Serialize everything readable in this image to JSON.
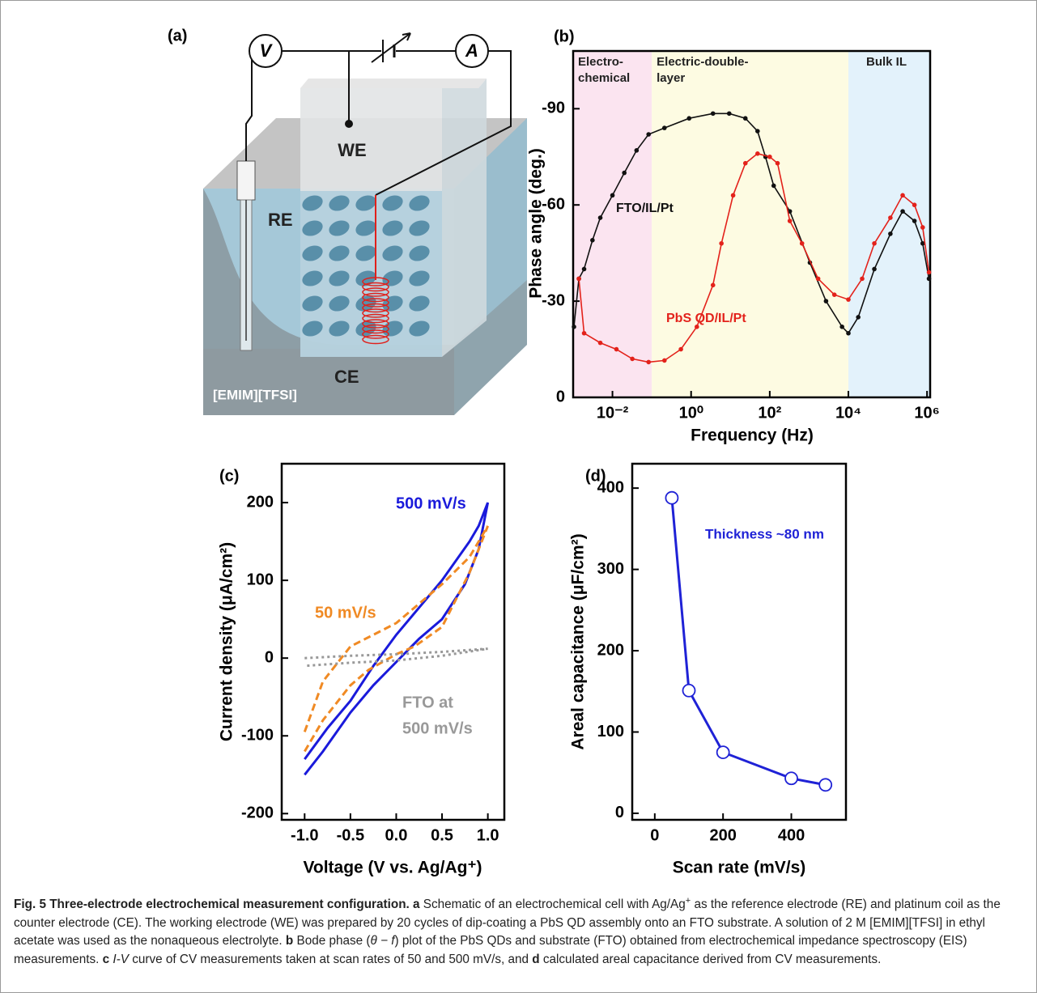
{
  "schematic": {
    "panel_label": "(a)",
    "voltmeter": "V",
    "ammeter": "A",
    "working_electrode": "WE",
    "reference_electrode": "RE",
    "counter_electrode": "CE",
    "electrolyte": "[EMIM][TFSI]"
  },
  "chart_data": [
    {
      "type": "line",
      "panel_label": "(b)",
      "xlabel": "Frequency (Hz)",
      "ylabel": "Phase angle (deg.)",
      "log_x": true,
      "xlim": [
        0.001,
        1200000
      ],
      "ylim": [
        0,
        -108
      ],
      "xticks": [
        {
          "value": 0.01,
          "label": "10⁻²"
        },
        {
          "value": 1,
          "label": "10⁰"
        },
        {
          "value": 100,
          "label": "10²"
        },
        {
          "value": 10000,
          "label": "10⁴"
        },
        {
          "value": 1000000,
          "label": "10⁶"
        }
      ],
      "yticks": [
        0,
        -30,
        -60,
        -90
      ],
      "regions": [
        {
          "name": [
            "Electro-",
            "chemical"
          ],
          "from": 0.001,
          "to": 0.1,
          "color": "#fbe4f0"
        },
        {
          "name": [
            "Electric-double-",
            "layer"
          ],
          "from": 0.1,
          "to": 10000,
          "color": "#fdfbe2"
        },
        {
          "name": [
            "Bulk IL"
          ],
          "from": 10000,
          "to": 1200000,
          "color": "#e3f2fb"
        }
      ],
      "annotations": [
        {
          "text": "FTO/IL/Pt",
          "color": "#111111"
        },
        {
          "text": "PbS QD/IL/Pt",
          "color": "#e3221b"
        }
      ],
      "series": [
        {
          "color": "#111111",
          "marker": "dot",
          "dash": "solid",
          "x": [
            0.00105,
            0.0014,
            0.0019,
            0.0031,
            0.0049,
            0.01,
            0.02,
            0.041,
            0.083,
            0.21,
            0.89,
            3.6,
            9.3,
            24,
            49,
            78,
            126,
            324,
            1050,
            2700,
            6900,
            10000,
            17800,
            45700,
            117000,
            240000,
            479000,
            776000,
            1120000
          ],
          "values": [
            -22,
            -37,
            -40,
            -49,
            -56,
            -63,
            -70,
            -77,
            -82,
            -84,
            -87,
            -88.5,
            -88.5,
            -87,
            -83,
            -75,
            -66,
            -58,
            -42,
            -30,
            -22,
            -20,
            -25,
            -40,
            -51,
            -58,
            -55,
            -48,
            -37
          ]
        },
        {
          "color": "#e3221b",
          "marker": "dot",
          "dash": "solid",
          "x": [
            0.0014,
            0.0019,
            0.0049,
            0.0126,
            0.032,
            0.083,
            0.21,
            0.55,
            1.4,
            3.6,
            5.9,
            11.7,
            24,
            49,
            100,
            158,
            324,
            661,
            1700,
            4400,
            10000,
            22400,
            45700,
            117000,
            240000,
            479000,
            776000,
            1120000
          ],
          "values": [
            -37,
            -20,
            -17,
            -15,
            -12,
            -11,
            -11.5,
            -15,
            -22,
            -35,
            -48,
            -63,
            -73,
            -76,
            -75,
            -73,
            -55,
            -48,
            -37,
            -32,
            -30.5,
            -37,
            -48,
            -56,
            -63,
            -60,
            -53,
            -39
          ]
        }
      ]
    },
    {
      "type": "line",
      "panel_label": "(c)",
      "xlabel": "Voltage (V vs. Ag/Ag⁺)",
      "ylabel": "Current density (μA/cm²)",
      "xlim": [
        -1.25,
        1.18
      ],
      "ylim": [
        -208,
        250
      ],
      "xticks": [
        {
          "value": -1,
          "label": "-1.0"
        },
        {
          "value": -0.5,
          "label": "-0.5"
        },
        {
          "value": 0,
          "label": "0.0"
        },
        {
          "value": 0.5,
          "label": "0.5"
        },
        {
          "value": 1,
          "label": "1.0"
        }
      ],
      "yticks": [
        200,
        100,
        0,
        -100,
        -200
      ],
      "series": [
        {
          "name": "500 mV/s",
          "color": "#1a1adb",
          "dash": "solid",
          "x": [
            -1,
            -0.75,
            -0.5,
            -0.25,
            0,
            0.25,
            0.5,
            0.8,
            0.9,
            1,
            0.9,
            0.75,
            0.5,
            0.25,
            0,
            -0.25,
            -0.5,
            -0.8,
            -1
          ],
          "values": [
            -130,
            -90,
            -55,
            -10,
            30,
            65,
            100,
            150,
            170,
            200,
            140,
            95,
            50,
            25,
            -5,
            -35,
            -70,
            -120,
            -150
          ]
        },
        {
          "name": "50 mV/s",
          "color": "#f08a24",
          "dash": "dashed",
          "x": [
            -1,
            -0.8,
            -0.5,
            -0.25,
            0,
            0.25,
            0.5,
            0.8,
            1,
            0.8,
            0.5,
            0.2,
            0,
            -0.3,
            -0.5,
            -0.8,
            -1
          ],
          "values": [
            -95,
            -30,
            15,
            30,
            45,
            70,
            95,
            130,
            170,
            110,
            40,
            15,
            5,
            -15,
            -35,
            -80,
            -120
          ]
        },
        {
          "name": [
            "FTO at",
            "500 mV/s"
          ],
          "color": "#999999",
          "dash": "dotted",
          "x": [
            -1,
            -0.5,
            0,
            0.5,
            1,
            0.5,
            0,
            -0.5,
            -1
          ],
          "values": [
            0,
            3,
            5,
            8,
            12,
            3,
            -3,
            -6,
            -10
          ]
        }
      ]
    },
    {
      "type": "line",
      "panel_label": "(d)",
      "xlabel": "Scan rate (mV/s)",
      "ylabel": "Areal capacitance (μF/cm²)",
      "xlim": [
        -66,
        560
      ],
      "ylim": [
        -8,
        430
      ],
      "xticks": [
        0,
        200,
        400
      ],
      "yticks": [
        0,
        100,
        200,
        300,
        400
      ],
      "annotations": [
        {
          "text": "Thickness ~80 nm",
          "color": "#1f22d6"
        }
      ],
      "series": [
        {
          "color": "#1f22d6",
          "marker": "open-circle",
          "dash": "solid",
          "x": [
            50,
            100,
            200,
            400,
            500
          ],
          "values": [
            388,
            151,
            75,
            43,
            35
          ]
        }
      ]
    }
  ],
  "caption": [
    {
      "text": "Fig. 5 Three-electrode electrochemical measurement configuration.",
      "style": "bold"
    },
    {
      "text": " a",
      "style": "bold"
    },
    {
      "text": " Schematic of an electrochemical cell with Ag/Ag",
      "style": "normal"
    },
    {
      "text": "+",
      "style": "sup"
    },
    {
      "text": " as the reference electrode (RE) and platinum coil as the counter electrode (CE). The working electrode (WE) was prepared by 20 cycles of dip-coating a PbS QD assembly onto an FTO substrate. A solution of 2 M [EMIM][TFSI] in ethyl acetate was used as the nonaqueous electrolyte.",
      "style": "normal"
    },
    {
      "text": " b",
      "style": "bold"
    },
    {
      "text": " Bode phase (",
      "style": "normal"
    },
    {
      "text": "θ − f",
      "style": "italic"
    },
    {
      "text": ") plot of the PbS QDs and substrate (FTO) obtained from electrochemical impedance spectroscopy (EIS) measurements.",
      "style": "normal"
    },
    {
      "text": " c",
      "style": "bold"
    },
    {
      "text": " I-V",
      "style": "italic"
    },
    {
      "text": " curve of CV measurements taken at scan rates of 50 and 500 mV/s, and",
      "style": "normal"
    },
    {
      "text": " d",
      "style": "bold"
    },
    {
      "text": " calculated areal capacitance derived from CV measurements.",
      "style": "normal"
    }
  ]
}
